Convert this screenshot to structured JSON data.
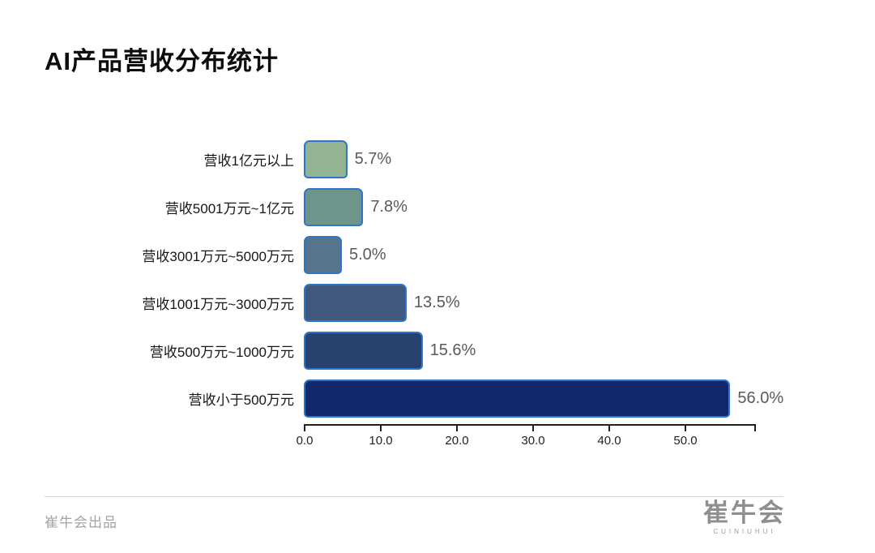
{
  "page": {
    "title": "AI产品营收分布统计"
  },
  "chart_data": {
    "type": "bar",
    "orientation": "horizontal",
    "title": "AI产品营收分布统计",
    "categories": [
      "营收1亿元以上",
      "营收5001万元~1亿元",
      "营收3001万元~5000万元",
      "营收1001万元~3000万元",
      "营收500万元~1000万元",
      "营收小于500万元"
    ],
    "values": [
      5.7,
      7.8,
      5.0,
      13.5,
      15.6,
      56.0
    ],
    "value_labels": [
      "5.7%",
      "7.8%",
      "5.0%",
      "13.5%",
      "15.6%",
      "56.0%"
    ],
    "x_ticks": [
      "0.0",
      "10.0",
      "20.0",
      "30.0",
      "40.0",
      "50.0"
    ],
    "xlabel": "",
    "ylabel": "",
    "xlim": [
      0,
      59.4
    ],
    "grid": false,
    "legend": "none",
    "bar_colors": [
      "#93b492",
      "#6f958b",
      "#56748a",
      "#41597d",
      "#29416f",
      "#12286b"
    ],
    "bar_border_color": "#2e76c9"
  },
  "footer": {
    "credit": "崔牛会出品",
    "logo_text": "崔牛会",
    "logo_subtext": "CUINIUHUI"
  }
}
